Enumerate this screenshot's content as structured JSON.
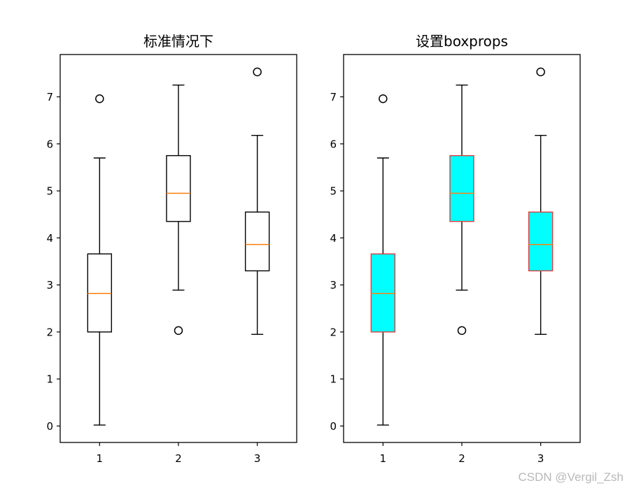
{
  "chart_data": [
    {
      "type": "box",
      "title": "标准情况下",
      "xlabel": "",
      "ylabel": "",
      "categories": [
        "1",
        "2",
        "3"
      ],
      "ylim": [
        -0.35,
        7.9
      ],
      "yticks": [
        0,
        1,
        2,
        3,
        4,
        5,
        6,
        7
      ],
      "grid": false,
      "boxes": [
        {
          "whisker_low": 0.02,
          "q1": 2.0,
          "median": 2.82,
          "q3": 3.66,
          "whisker_high": 5.7,
          "outliers": [
            6.96
          ]
        },
        {
          "whisker_low": 2.89,
          "q1": 4.35,
          "median": 4.95,
          "q3": 5.75,
          "whisker_high": 7.25,
          "outliers": [
            2.03
          ]
        },
        {
          "whisker_low": 1.95,
          "q1": 3.3,
          "median": 3.86,
          "q3": 4.55,
          "whisker_high": 6.18,
          "outliers": [
            7.53
          ]
        }
      ],
      "style": {
        "box_fill": "none",
        "box_edge": "#000000",
        "median_color": "#ff7f0e"
      }
    },
    {
      "type": "box",
      "title": "设置boxprops",
      "xlabel": "",
      "ylabel": "",
      "categories": [
        "1",
        "2",
        "3"
      ],
      "ylim": [
        -0.35,
        7.9
      ],
      "yticks": [
        0,
        1,
        2,
        3,
        4,
        5,
        6,
        7
      ],
      "grid": false,
      "boxes": [
        {
          "whisker_low": 0.02,
          "q1": 2.0,
          "median": 2.82,
          "q3": 3.66,
          "whisker_high": 5.7,
          "outliers": [
            6.96
          ]
        },
        {
          "whisker_low": 2.89,
          "q1": 4.35,
          "median": 4.95,
          "q3": 5.75,
          "whisker_high": 7.25,
          "outliers": [
            2.03
          ]
        },
        {
          "whisker_low": 1.95,
          "q1": 3.3,
          "median": 3.86,
          "q3": 4.55,
          "whisker_high": 6.18,
          "outliers": [
            7.53
          ]
        }
      ],
      "style": {
        "box_fill": "#00ffff",
        "box_edge": "#e03c3c",
        "median_color": "#ff7f0e"
      }
    }
  ],
  "watermark": "CSDN @Vergil_Zsh"
}
